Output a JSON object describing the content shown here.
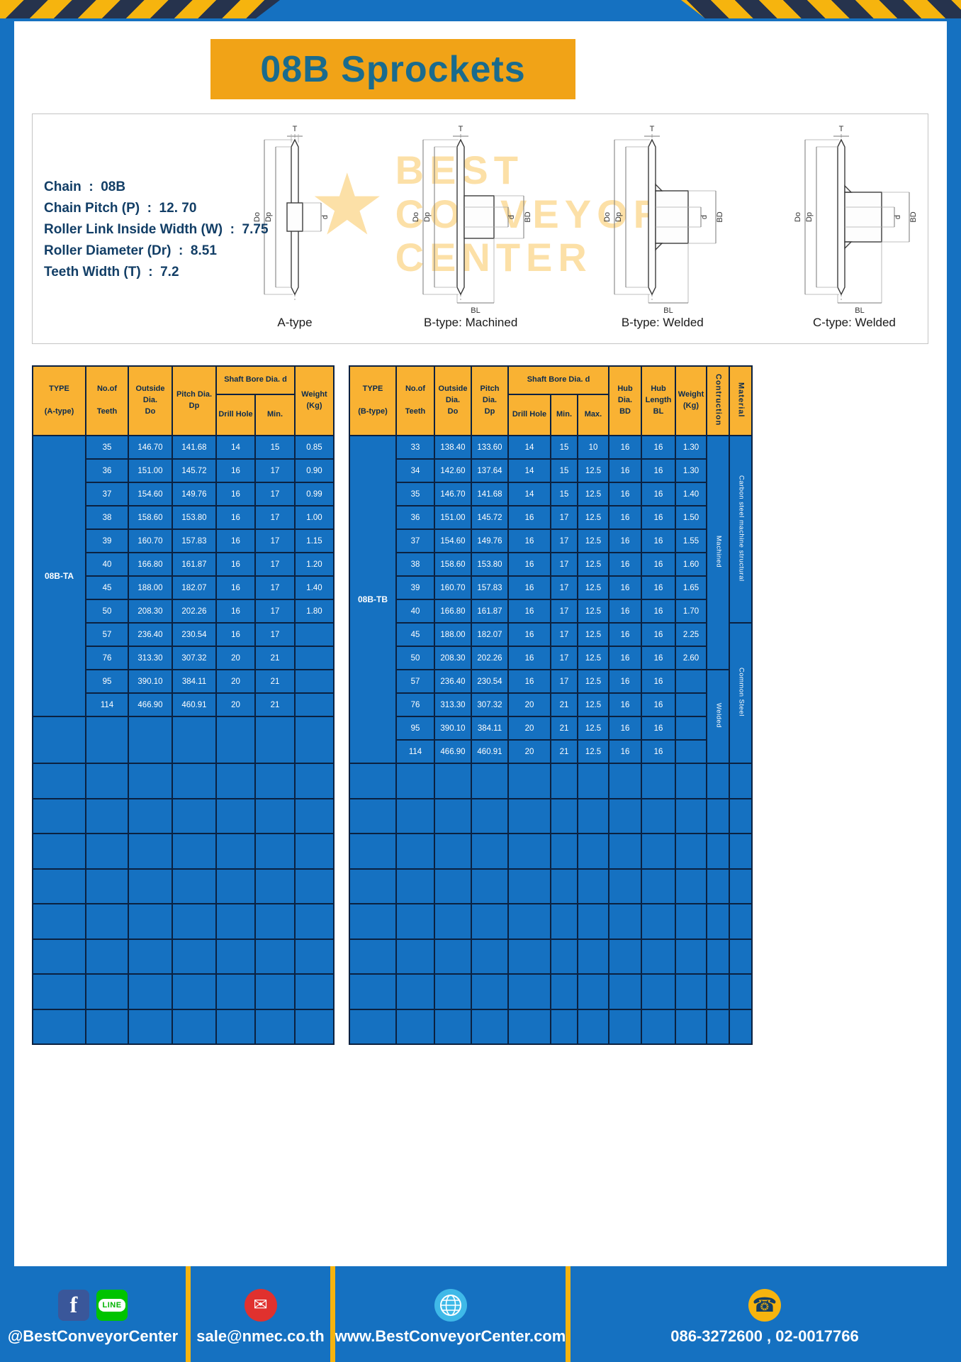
{
  "title": "08B Sprockets",
  "colors": {
    "background_blue": "#1571C1",
    "accent_yellow": "#F6B40E",
    "banner_yellow": "#F1A317",
    "table_header_yellow": "#F9B233",
    "title_teal": "#1A6B8D"
  },
  "specs": [
    "Chain  :  08B",
    "Chain Pitch (P)  :  12. 70",
    "Roller Link Inside Width (W)  :  7.75",
    "Roller Diameter (Dr)  :  8.51",
    "Teeth Width (T)  :  7.2"
  ],
  "diagram": {
    "watermark_lines": [
      "BEST",
      "CONVEYOR",
      "CENTER"
    ],
    "captions": [
      "A-type",
      "B-type: Machined",
      "B-type: Welded",
      "C-type: Welded"
    ],
    "dims": {
      "t": "T",
      "do": "Do",
      "dp": "Dp",
      "d": "d",
      "bd": "BD",
      "bl": "BL"
    }
  },
  "table_a": {
    "headers": {
      "type": "TYPE\n\n(A-type)",
      "teeth": "No.of\n\nTeeth",
      "outside": "Outside\nDia.\nDo",
      "pitch": "Pitch Dia.\nDp",
      "shaft_group": "Shaft Bore Dia. d",
      "drill": "Drill Hole",
      "min": "Min.",
      "weight": "Weight\n(Kg)"
    },
    "type_value": "08B-TA",
    "rows": [
      [
        "35",
        "146.70",
        "141.68",
        "14",
        "15",
        "0.85"
      ],
      [
        "36",
        "151.00",
        "145.72",
        "16",
        "17",
        "0.90"
      ],
      [
        "37",
        "154.60",
        "149.76",
        "16",
        "17",
        "0.99"
      ],
      [
        "38",
        "158.60",
        "153.80",
        "16",
        "17",
        "1.00"
      ],
      [
        "39",
        "160.70",
        "157.83",
        "16",
        "17",
        "1.15"
      ],
      [
        "40",
        "166.80",
        "161.87",
        "16",
        "17",
        "1.20"
      ],
      [
        "45",
        "188.00",
        "182.07",
        "16",
        "17",
        "1.40"
      ],
      [
        "50",
        "208.30",
        "202.26",
        "16",
        "17",
        "1.80"
      ],
      [
        "57",
        "236.40",
        "230.54",
        "16",
        "17",
        ""
      ],
      [
        "76",
        "313.30",
        "307.32",
        "20",
        "21",
        ""
      ],
      [
        "95",
        "390.10",
        "384.11",
        "20",
        "21",
        ""
      ],
      [
        "114",
        "466.90",
        "460.91",
        "20",
        "21",
        ""
      ]
    ],
    "empty_rows": 9
  },
  "table_b": {
    "headers": {
      "type": "TYPE\n\n(B-type)",
      "teeth": "No.of\n\nTeeth",
      "outside": "Outside\nDia.\nDo",
      "pitch": "Pitch Dia.\nDp",
      "shaft_group": "Shaft Bore Dia. d",
      "drill": "Drill Hole",
      "min": "Min.",
      "max": "Max.",
      "hub_dia": "Hub Dia.\nBD",
      "hub_len": "Hub\nLength\nBL",
      "weight": "Weight\n(Kg)",
      "construction": "Contruction",
      "material": "Material"
    },
    "type_value": "08B-TB",
    "rows": [
      [
        "33",
        "138.40",
        "133.60",
        "14",
        "15",
        "10",
        "16",
        "16",
        "1.30"
      ],
      [
        "34",
        "142.60",
        "137.64",
        "14",
        "15",
        "12.5",
        "16",
        "16",
        "1.30"
      ],
      [
        "35",
        "146.70",
        "141.68",
        "14",
        "15",
        "12.5",
        "16",
        "16",
        "1.40"
      ],
      [
        "36",
        "151.00",
        "145.72",
        "16",
        "17",
        "12.5",
        "16",
        "16",
        "1.50"
      ],
      [
        "37",
        "154.60",
        "149.76",
        "16",
        "17",
        "12.5",
        "16",
        "16",
        "1.55"
      ],
      [
        "38",
        "158.60",
        "153.80",
        "16",
        "17",
        "12.5",
        "16",
        "16",
        "1.60"
      ],
      [
        "39",
        "160.70",
        "157.83",
        "16",
        "17",
        "12.5",
        "16",
        "16",
        "1.65"
      ],
      [
        "40",
        "166.80",
        "161.87",
        "16",
        "17",
        "12.5",
        "16",
        "16",
        "1.70"
      ],
      [
        "45",
        "188.00",
        "182.07",
        "16",
        "17",
        "12.5",
        "16",
        "16",
        "2.25"
      ],
      [
        "50",
        "208.30",
        "202.26",
        "16",
        "17",
        "12.5",
        "16",
        "16",
        "2.60"
      ],
      [
        "57",
        "236.40",
        "230.54",
        "16",
        "17",
        "12.5",
        "16",
        "16",
        ""
      ],
      [
        "76",
        "313.30",
        "307.32",
        "20",
        "21",
        "12.5",
        "16",
        "16",
        ""
      ],
      [
        "95",
        "390.10",
        "384.11",
        "20",
        "21",
        "12.5",
        "16",
        "16",
        ""
      ],
      [
        "114",
        "466.90",
        "460.91",
        "20",
        "21",
        "12.5",
        "16",
        "16",
        ""
      ]
    ],
    "construction_spans": [
      {
        "label": "Machined",
        "rows": 10
      },
      {
        "label": "Welded",
        "rows": 4
      }
    ],
    "material_spans": [
      {
        "label": "Carbon steel  machine structural",
        "rows": 8
      },
      {
        "label": "Common  Steel",
        "rows": 6
      }
    ],
    "empty_rows": 8
  },
  "footer": {
    "social_text": "@BestConveyorCenter",
    "email_text": "sale@nmec.co.th",
    "web_text": "www.BestConveyorCenter.com",
    "phone_text": "086-3272600 , 02-0017766",
    "icons": {
      "facebook": "f",
      "line": "LINE",
      "email": "✉",
      "phone": "☎"
    }
  }
}
